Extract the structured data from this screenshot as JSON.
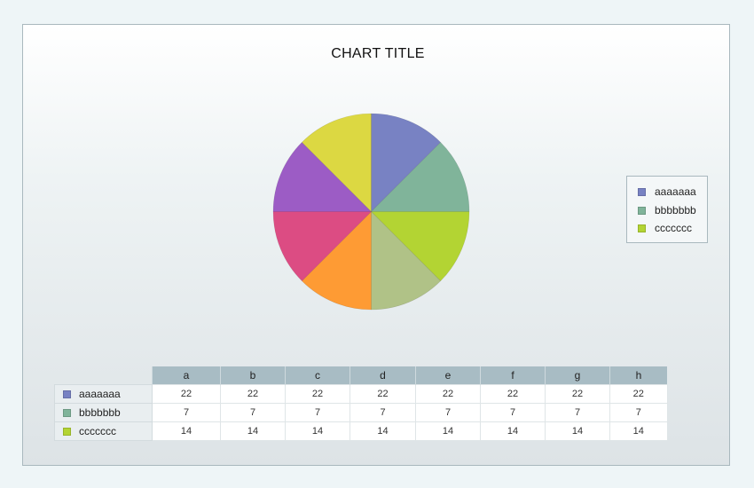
{
  "chart_data": {
    "type": "pie",
    "title": "CHART TITLE",
    "slices": [
      {
        "value": 22,
        "color": "#7882c3"
      },
      {
        "value": 22,
        "color": "#80b49a"
      },
      {
        "value": 22,
        "color": "#b3d433"
      },
      {
        "value": 22,
        "color": "#b0c287"
      },
      {
        "value": 22,
        "color": "#fe9b34"
      },
      {
        "value": 22,
        "color": "#dc4c83"
      },
      {
        "value": 22,
        "color": "#9c5cc5"
      },
      {
        "value": 22,
        "color": "#dcd842"
      }
    ],
    "categories": [
      "a",
      "b",
      "c",
      "d",
      "e",
      "f",
      "g",
      "h"
    ],
    "series": [
      {
        "name": "aaaaaaa",
        "color": "#7882c3",
        "values": [
          22,
          22,
          22,
          22,
          22,
          22,
          22,
          22
        ]
      },
      {
        "name": "bbbbbbb",
        "color": "#80b49a",
        "values": [
          7,
          7,
          7,
          7,
          7,
          7,
          7,
          7
        ]
      },
      {
        "name": "ccccccc",
        "color": "#b3d433",
        "values": [
          14,
          14,
          14,
          14,
          14,
          14,
          14,
          14
        ]
      }
    ],
    "legend_position": "right"
  }
}
